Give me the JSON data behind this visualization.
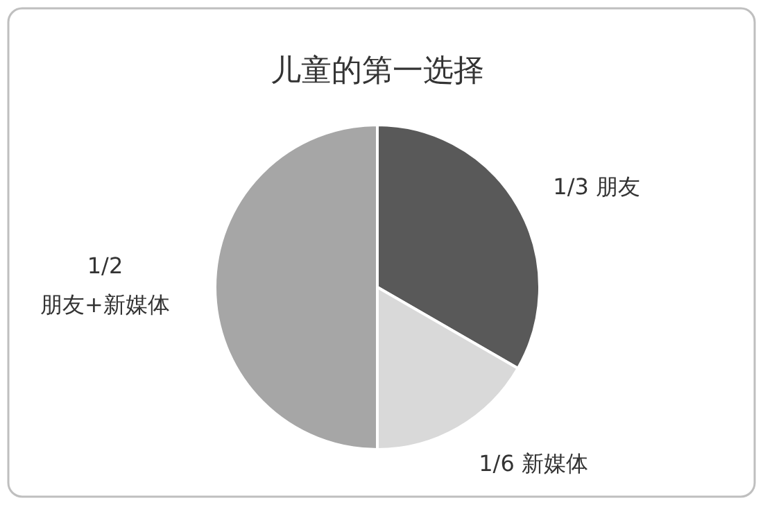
{
  "chart_data": {
    "type": "pie",
    "title": "儿童的第一选择",
    "categories": [
      "朋友",
      "新媒体",
      "朋友+新媒体"
    ],
    "values": [
      0.3333,
      0.1667,
      0.5
    ],
    "value_labels": [
      "1/3",
      "1/6",
      "1/2"
    ],
    "colors": [
      "#595959",
      "#d9d9d9",
      "#a6a6a6"
    ]
  }
}
